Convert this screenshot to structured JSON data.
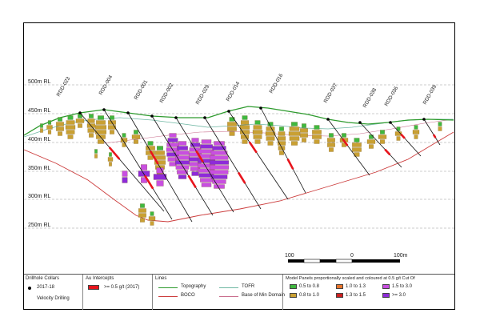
{
  "section": {
    "rl_labels": [
      "500m RL",
      "450m RL",
      "400m RL",
      "350m RL",
      "300m RL",
      "250m RL"
    ],
    "holes": [
      "RDD-023",
      "RDD-004",
      "RDD-001",
      "RDD-002",
      "RDD-029",
      "RDD-014",
      "RDD-016",
      "RDD-037",
      "RDD-038",
      "RDD-036",
      "RDD-039"
    ],
    "scale_bar": {
      "left": "100",
      "mid": "0",
      "right": "100m"
    }
  },
  "legend": {
    "collars": {
      "title": "Drillhole Collars",
      "items": [
        "2017-18",
        "Velocity Drilling"
      ]
    },
    "intercepts": {
      "title": "Au Intercepts",
      "item": ">= 0.5 g/t (2017)"
    },
    "lines": {
      "title": "Lines",
      "items": [
        "Topography",
        "TOFR",
        "BOCO",
        "Base of Min Domain"
      ]
    },
    "panels": {
      "title": "Model Panels proportionally scaled and coloured at 0.5 g/t Cut Of",
      "items": [
        "0.5 to 0.8",
        "1.0 to 1.3",
        "1.5 to 3.0",
        "0.8 to 1.0",
        "1.3 to 1.5",
        ">= 3.0"
      ]
    }
  },
  "colors": {
    "topography": "#2e9b2e",
    "tofr": "#6fb7a3",
    "boco": "#cc3c3c",
    "base_min": "#c96d8c",
    "intercept": "#e8141c",
    "grid": "#9a9a9a",
    "p_05_08": "#3fb83f",
    "p_08_10": "#c9a033",
    "p_10_13": "#e8742c",
    "p_13_15": "#cc2020",
    "p_15_30": "#c84fe0",
    "p_ge3": "#8e2bd9"
  }
}
